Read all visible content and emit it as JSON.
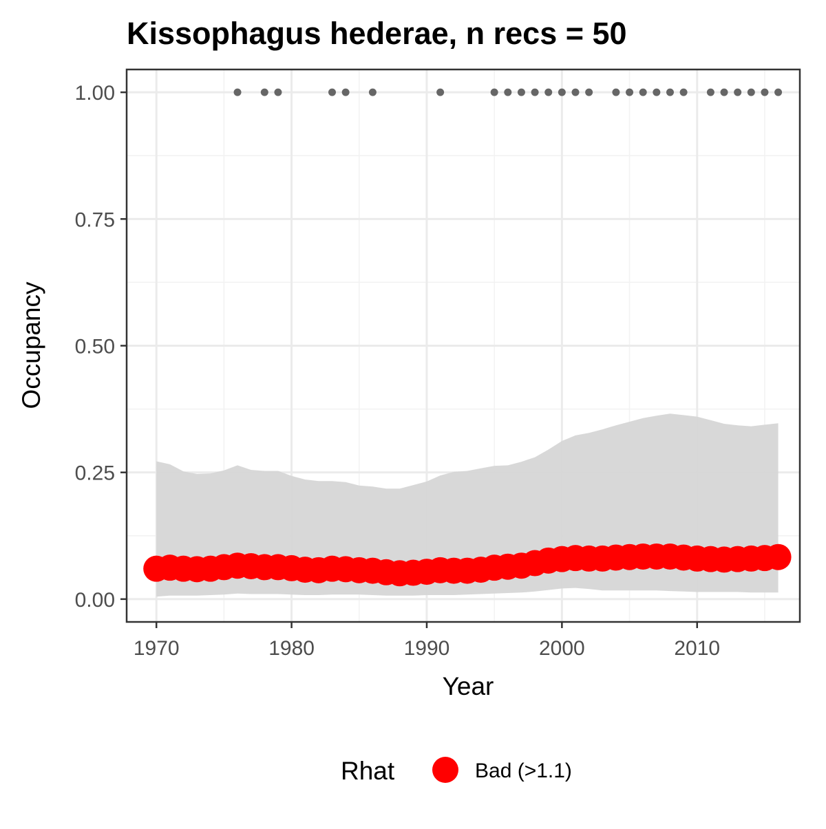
{
  "chart_data": {
    "type": "line",
    "title": "Kissophagus hederae, n recs = 50",
    "xlabel": "Year",
    "ylabel": "Occupancy",
    "xlim": [
      1967.8,
      2017.6
    ],
    "ylim": [
      -0.045,
      1.045
    ],
    "x_ticks": [
      1970,
      1980,
      1990,
      2000,
      2010
    ],
    "x_tick_labels": [
      "1970",
      "1980",
      "1990",
      "2000",
      "2010"
    ],
    "y_ticks": [
      0,
      0.25,
      0.5,
      0.75,
      1.0
    ],
    "y_tick_labels": [
      "0.00",
      "0.25",
      "0.50",
      "0.75",
      "1.00"
    ],
    "grid": true,
    "legend": {
      "position": "bottom",
      "title": "Rhat",
      "entries": [
        {
          "label": "Bad (>1.1)",
          "color": "#FF0000"
        }
      ]
    },
    "colors": {
      "occupancy_points": "#FF0000",
      "credible_interval": "#D6D6D6",
      "record_years": "#666666"
    },
    "series": [
      {
        "x": [
          1970,
          1971,
          1972,
          1973,
          1974,
          1975,
          1976,
          1977,
          1978,
          1979,
          1980,
          1981,
          1982,
          1983,
          1984,
          1985,
          1986,
          1987,
          1988,
          1989,
          1990,
          1991,
          1992,
          1993,
          1994,
          1995,
          1996,
          1997,
          1998,
          1999,
          2000,
          2001,
          2002,
          2003,
          2004,
          2005,
          2006,
          2007,
          2008,
          2009,
          2010,
          2011,
          2012,
          2013,
          2014,
          2015,
          2016
        ],
        "values": [
          0.06,
          0.062,
          0.06,
          0.059,
          0.06,
          0.063,
          0.066,
          0.065,
          0.063,
          0.063,
          0.061,
          0.058,
          0.057,
          0.06,
          0.059,
          0.057,
          0.056,
          0.053,
          0.051,
          0.052,
          0.054,
          0.057,
          0.056,
          0.056,
          0.058,
          0.062,
          0.064,
          0.066,
          0.071,
          0.076,
          0.079,
          0.081,
          0.08,
          0.08,
          0.082,
          0.083,
          0.084,
          0.084,
          0.084,
          0.082,
          0.08,
          0.079,
          0.078,
          0.079,
          0.08,
          0.081,
          0.083
        ]
      },
      {
        "x": [
          1970,
          1971,
          1972,
          1973,
          1974,
          1975,
          1976,
          1977,
          1978,
          1979,
          1980,
          1981,
          1982,
          1983,
          1984,
          1985,
          1986,
          1987,
          1988,
          1989,
          1990,
          1991,
          1992,
          1993,
          1994,
          1995,
          1996,
          1997,
          1998,
          1999,
          2000,
          2001,
          2002,
          2003,
          2004,
          2005,
          2006,
          2007,
          2008,
          2009,
          2010,
          2011,
          2012,
          2013,
          2014,
          2015,
          2016
        ],
        "lower": [
          0.005,
          0.007,
          0.007,
          0.007,
          0.008,
          0.009,
          0.011,
          0.01,
          0.01,
          0.01,
          0.009,
          0.008,
          0.008,
          0.009,
          0.009,
          0.009,
          0.008,
          0.007,
          0.007,
          0.007,
          0.008,
          0.008,
          0.008,
          0.009,
          0.01,
          0.011,
          0.012,
          0.013,
          0.015,
          0.018,
          0.021,
          0.022,
          0.02,
          0.017,
          0.017,
          0.017,
          0.017,
          0.017,
          0.016,
          0.015,
          0.014,
          0.014,
          0.014,
          0.014,
          0.013,
          0.013,
          0.013
        ],
        "upper": [
          0.272,
          0.266,
          0.252,
          0.247,
          0.248,
          0.254,
          0.264,
          0.255,
          0.253,
          0.253,
          0.243,
          0.236,
          0.233,
          0.233,
          0.231,
          0.224,
          0.222,
          0.218,
          0.218,
          0.225,
          0.232,
          0.244,
          0.251,
          0.253,
          0.258,
          0.263,
          0.264,
          0.271,
          0.28,
          0.295,
          0.312,
          0.323,
          0.328,
          0.335,
          0.343,
          0.35,
          0.357,
          0.362,
          0.366,
          0.363,
          0.36,
          0.353,
          0.346,
          0.343,
          0.341,
          0.344,
          0.347
        ]
      },
      {
        "x": [
          1976,
          1978,
          1979,
          1983,
          1984,
          1986,
          1991,
          1995,
          1996,
          1997,
          1998,
          1999,
          2000,
          2001,
          2002,
          2004,
          2005,
          2006,
          2007,
          2008,
          2009,
          2011,
          2012,
          2013,
          2014,
          2015,
          2016
        ],
        "values": [
          1,
          1,
          1,
          1,
          1,
          1,
          1,
          1,
          1,
          1,
          1,
          1,
          1,
          1,
          1,
          1,
          1,
          1,
          1,
          1,
          1,
          1,
          1,
          1,
          1,
          1,
          1
        ]
      }
    ]
  }
}
